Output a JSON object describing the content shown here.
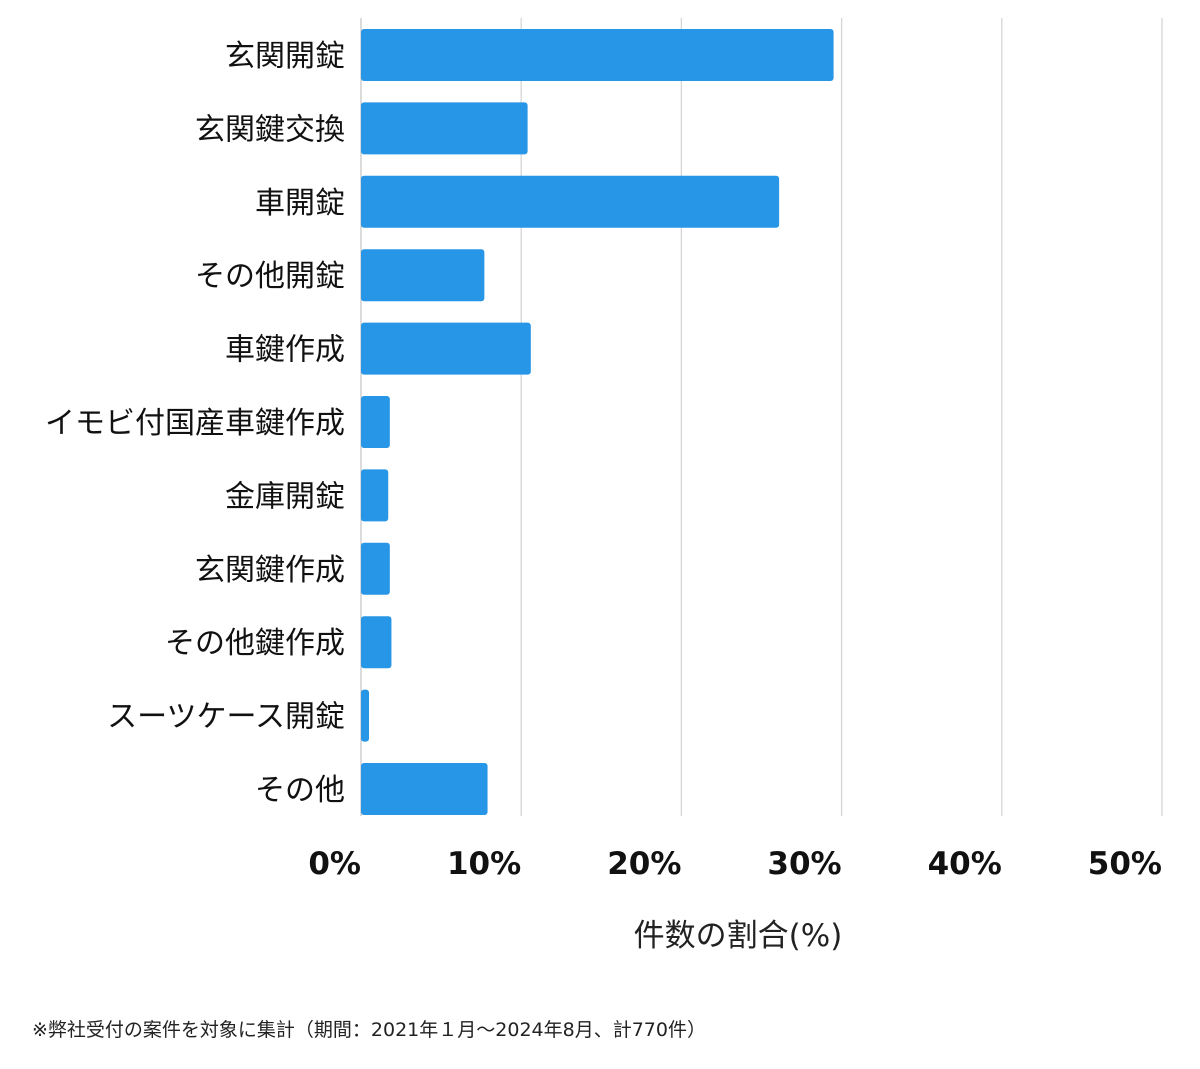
{
  "chart_data": {
    "type": "bar",
    "orientation": "horizontal",
    "categories": [
      "玄関開錠",
      "玄関鍵交換",
      "車開錠",
      "その他開錠",
      "車鍵作成",
      "イモビ付国産車鍵作成",
      "金庫開錠",
      "玄関鍵作成",
      "その他鍵作成",
      "スーツケース開錠",
      "その他"
    ],
    "values": [
      29.5,
      10.4,
      26.1,
      7.7,
      10.6,
      1.8,
      1.7,
      1.8,
      1.9,
      0.5,
      7.9
    ],
    "xlabel": "件数の割合(%)",
    "ylabel": "",
    "xlim": [
      0,
      50
    ],
    "x_ticks": [
      "0%",
      "10%",
      "20%",
      "30%",
      "40%",
      "50%"
    ],
    "grid": true,
    "bar_color": "#2796e6"
  },
  "footnote": "※弊社受付の案件を対象に集計（期間：2021年１月～2024年8月、計770件）"
}
